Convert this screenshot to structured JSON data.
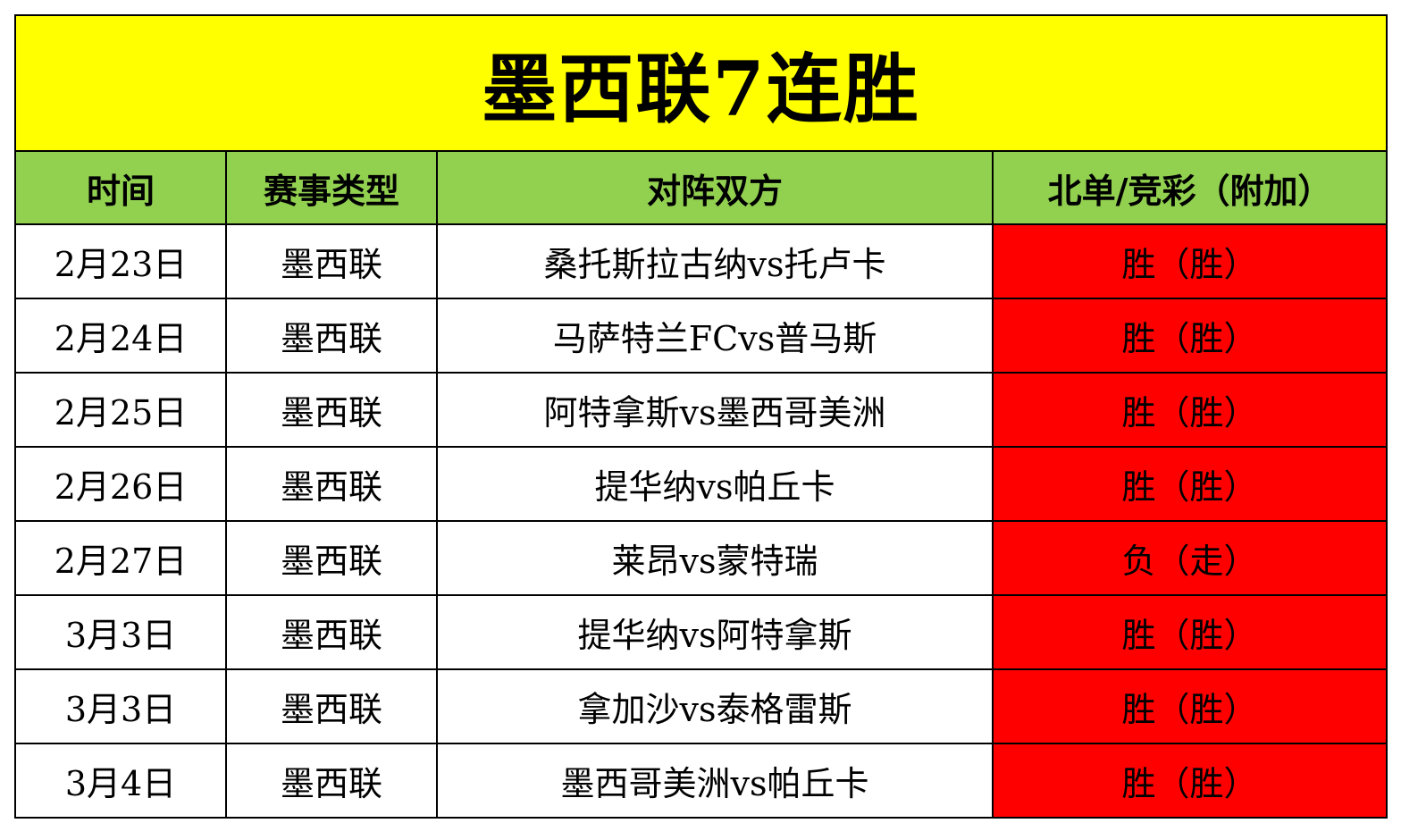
{
  "title": "墨西联7连胜",
  "colors": {
    "title_bg": "#ffff00",
    "header_bg": "#92d050",
    "result_bg": "#ff0000",
    "border": "#000000"
  },
  "headers": {
    "time": "时间",
    "type": "赛事类型",
    "match": "对阵双方",
    "result": "北单/竞彩（附加）"
  },
  "rows": [
    {
      "time": "2月23日",
      "type": "墨西联",
      "match": "桑托斯拉古纳vs托卢卡",
      "result": "胜（胜）"
    },
    {
      "time": "2月24日",
      "type": "墨西联",
      "match": "马萨特兰FCvs普马斯",
      "result": "胜（胜）"
    },
    {
      "time": "2月25日",
      "type": "墨西联",
      "match": "阿特拿斯vs墨西哥美洲",
      "result": "胜（胜）"
    },
    {
      "time": "2月26日",
      "type": "墨西联",
      "match": "提华纳vs帕丘卡",
      "result": "胜（胜）"
    },
    {
      "time": "2月27日",
      "type": "墨西联",
      "match": "莱昂vs蒙特瑞",
      "result": "负（走）"
    },
    {
      "time": "3月3日",
      "type": "墨西联",
      "match": "提华纳vs阿特拿斯",
      "result": "胜（胜）"
    },
    {
      "time": "3月3日",
      "type": "墨西联",
      "match": "拿加沙vs泰格雷斯",
      "result": "胜（胜）"
    },
    {
      "time": "3月4日",
      "type": "墨西联",
      "match": "墨西哥美洲vs帕丘卡",
      "result": "胜（胜）"
    }
  ]
}
